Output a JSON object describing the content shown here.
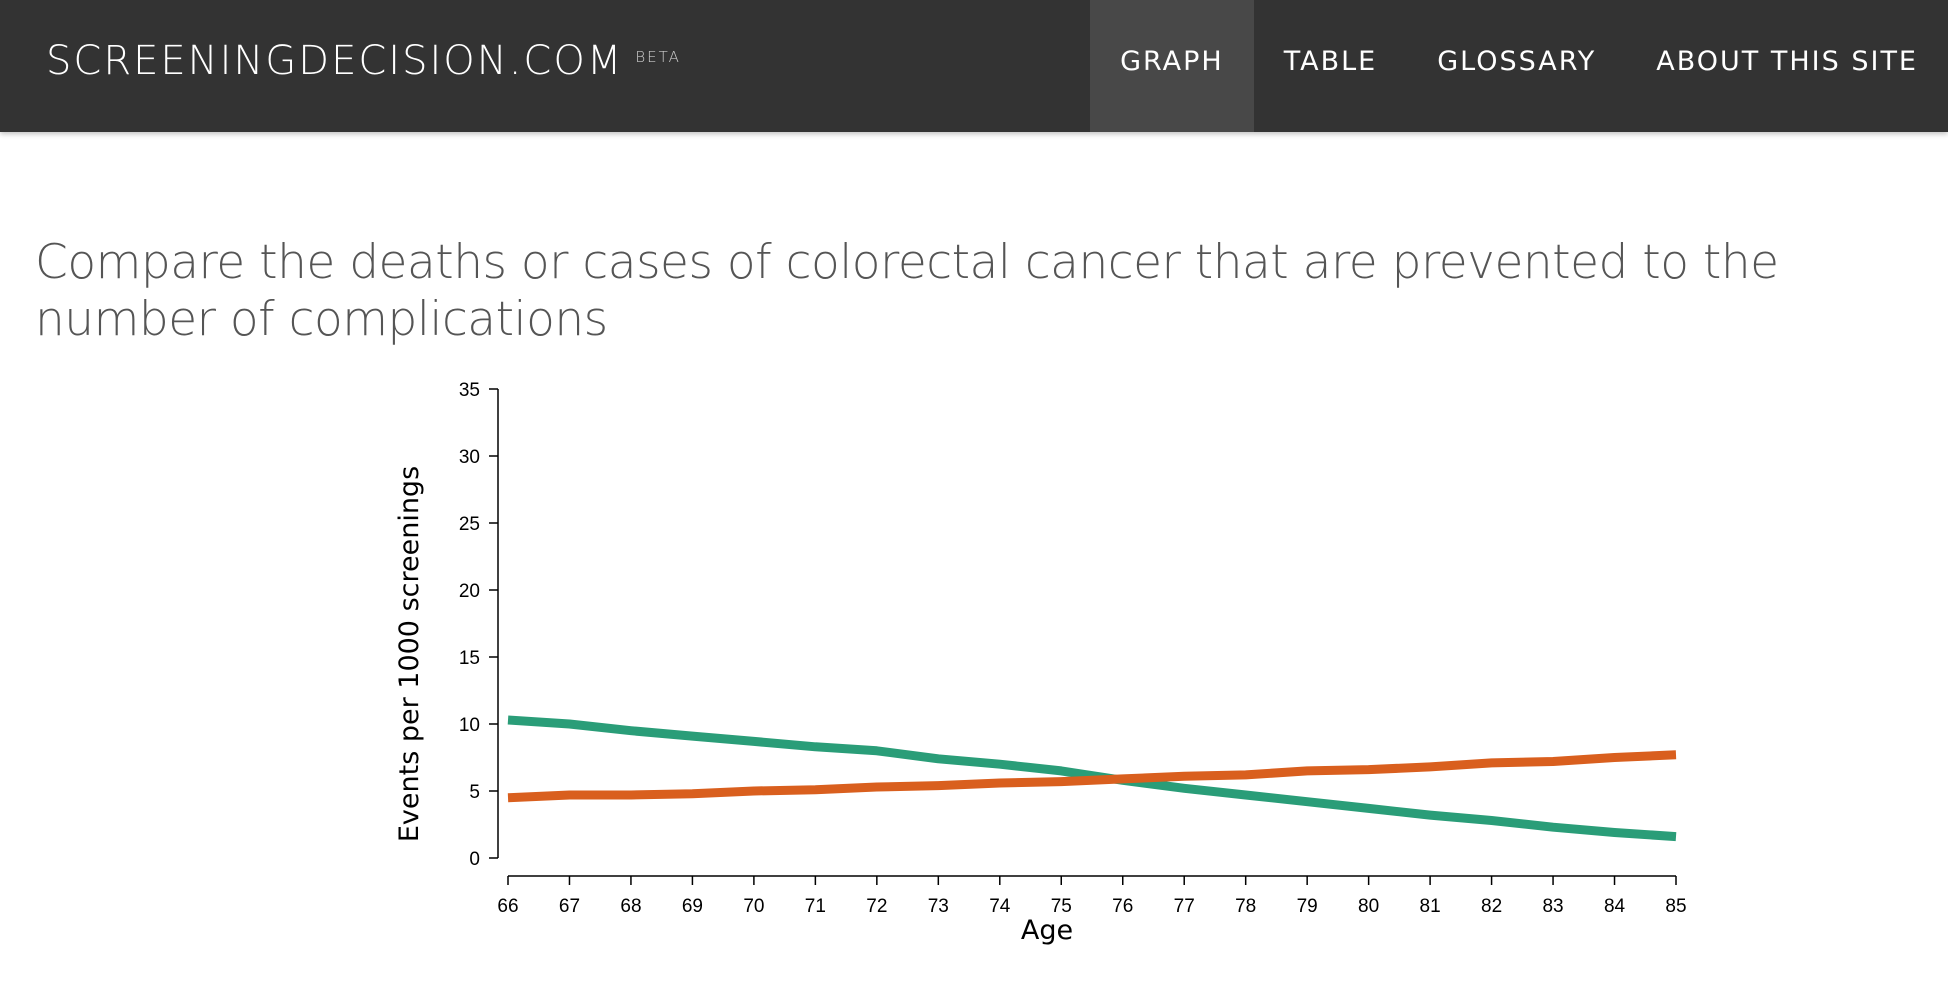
{
  "header": {
    "brand": "SCREENINGDECISION.COM",
    "brand_badge": "BETA",
    "nav": [
      {
        "label": "GRAPH",
        "active": true
      },
      {
        "label": "TABLE",
        "active": false
      },
      {
        "label": "GLOSSARY",
        "active": false
      },
      {
        "label": "ABOUT THIS SITE",
        "active": false
      }
    ]
  },
  "page": {
    "title": "Compare the deaths or cases of colorectal cancer that are prevented to the number of complications"
  },
  "colors": {
    "navbar": "#333333",
    "nav_active": "#484848",
    "series_green": "#2a9d78",
    "series_orange": "#d95f1e"
  },
  "chart_data": {
    "type": "line",
    "xlabel": "Age",
    "ylabel": "Events per 1000 screenings",
    "x": [
      66,
      67,
      68,
      69,
      70,
      71,
      72,
      73,
      74,
      75,
      76,
      77,
      78,
      79,
      80,
      81,
      82,
      83,
      84,
      85
    ],
    "xticks": [
      "66",
      "67",
      "68",
      "69",
      "70",
      "71",
      "72",
      "73",
      "74",
      "75",
      "76",
      "77",
      "78",
      "79",
      "80",
      "81",
      "82",
      "83",
      "84",
      "85"
    ],
    "ylim": [
      0,
      35
    ],
    "yticks": [
      "0",
      "5",
      "10",
      "15",
      "20",
      "25",
      "30",
      "35"
    ],
    "yticks_values": [
      0,
      5,
      10,
      15,
      20,
      25,
      30,
      35
    ],
    "grid": false,
    "legend": "none",
    "series": [
      {
        "color": "#2a9d78",
        "values": [
          10.3,
          10.0,
          9.5,
          9.1,
          8.7,
          8.3,
          8.0,
          7.4,
          7.0,
          6.5,
          5.8,
          5.2,
          4.7,
          4.2,
          3.7,
          3.2,
          2.8,
          2.3,
          1.9,
          1.6
        ]
      },
      {
        "color": "#d95f1e",
        "values": [
          4.5,
          4.7,
          4.7,
          4.8,
          5.0,
          5.1,
          5.3,
          5.4,
          5.6,
          5.7,
          5.9,
          6.1,
          6.2,
          6.5,
          6.6,
          6.8,
          7.1,
          7.2,
          7.5,
          7.7
        ]
      }
    ]
  }
}
